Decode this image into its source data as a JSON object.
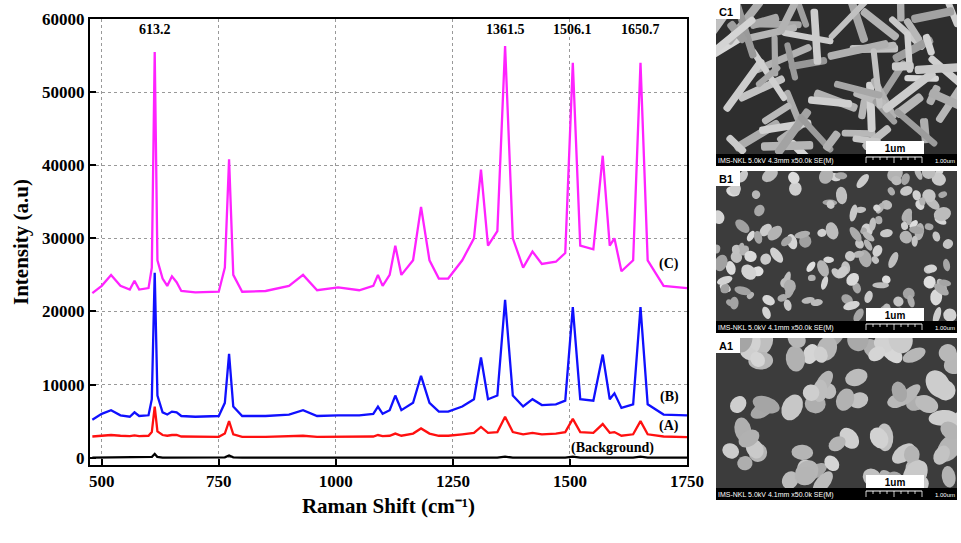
{
  "chart_data": {
    "type": "line",
    "x_label": "Raman Shift (cm⁻¹)",
    "y_label": "Intensity (a.u)",
    "xlim": [
      475,
      1750
    ],
    "xticks": [
      500,
      750,
      1000,
      1250,
      1500,
      1750
    ],
    "ylim": [
      -1000,
      60000
    ],
    "yticks": [
      0,
      10000,
      20000,
      30000,
      40000,
      50000,
      60000
    ],
    "grid": true,
    "x": [
      480,
      500,
      520,
      540,
      560,
      570,
      580,
      600,
      607,
      613.2,
      619,
      630,
      640,
      650,
      660,
      670,
      700,
      750,
      763,
      772,
      781,
      800,
      850,
      900,
      930,
      960,
      1005,
      1050,
      1080,
      1090,
      1100,
      1115,
      1127,
      1140,
      1165,
      1182,
      1200,
      1220,
      1240,
      1270,
      1295,
      1310,
      1325,
      1345,
      1361.5,
      1378,
      1400,
      1420,
      1440,
      1470,
      1490,
      1506.1,
      1522,
      1550,
      1570,
      1585,
      1595,
      1610,
      1635,
      1650.7,
      1666,
      1700,
      1750
    ],
    "series": [
      {
        "name": "(C)",
        "color": "#ff22ff",
        "values": [
          22500,
          23500,
          25000,
          23500,
          23000,
          24200,
          23000,
          23200,
          26000,
          55500,
          27000,
          24500,
          23500,
          24800,
          24000,
          22800,
          22600,
          22700,
          26000,
          40800,
          25000,
          22700,
          22800,
          23500,
          25000,
          22900,
          23300,
          22900,
          23500,
          25000,
          23500,
          25000,
          29000,
          25000,
          27000,
          34300,
          27000,
          24500,
          24500,
          27000,
          30000,
          39400,
          29000,
          31000,
          56300,
          30000,
          26000,
          28200,
          26500,
          26800,
          28000,
          54000,
          29000,
          28500,
          41300,
          29000,
          30000,
          25500,
          27000,
          54000,
          27000,
          23500,
          23200
        ]
      },
      {
        "name": "(B)",
        "color": "#1010ff",
        "values": [
          5200,
          6000,
          6500,
          5800,
          5600,
          6200,
          5700,
          5800,
          8000,
          25300,
          8500,
          6200,
          5900,
          6300,
          6200,
          5700,
          5600,
          5700,
          7500,
          14200,
          7000,
          5700,
          5700,
          5900,
          6500,
          5700,
          5800,
          5800,
          6000,
          7000,
          6000,
          6500,
          8500,
          6500,
          7500,
          11200,
          7500,
          6300,
          6300,
          7000,
          8000,
          13700,
          8000,
          8500,
          21600,
          8500,
          7000,
          8000,
          7200,
          7300,
          7800,
          20600,
          8000,
          7800,
          14100,
          8000,
          8800,
          6800,
          7300,
          20600,
          7300,
          5900,
          5800
        ]
      },
      {
        "name": "(A)",
        "color": "#ff1010",
        "values": [
          2900,
          3000,
          3100,
          3000,
          2950,
          3050,
          2950,
          3000,
          3500,
          7000,
          3600,
          3100,
          3000,
          3100,
          3100,
          2900,
          2850,
          2850,
          3300,
          5000,
          3200,
          2850,
          2850,
          2900,
          3000,
          2850,
          2850,
          2850,
          2900,
          3100,
          2950,
          3000,
          3300,
          3000,
          3300,
          4000,
          3300,
          3000,
          3000,
          3200,
          3400,
          4200,
          3400,
          3500,
          5600,
          3500,
          3200,
          3400,
          3200,
          3300,
          3500,
          5300,
          3500,
          3400,
          4600,
          3400,
          3500,
          3000,
          3200,
          5000,
          3200,
          2900,
          2800
        ]
      },
      {
        "name": "(Background)",
        "color": "#000000",
        "values": [
          0,
          0,
          0,
          0,
          0,
          0,
          0,
          0,
          100,
          500,
          100,
          0,
          0,
          0,
          0,
          0,
          0,
          0,
          50,
          300,
          50,
          0,
          0,
          0,
          0,
          0,
          0,
          0,
          0,
          0,
          0,
          0,
          0,
          0,
          0,
          0,
          0,
          0,
          0,
          0,
          0,
          0,
          0,
          0,
          150,
          0,
          0,
          0,
          0,
          0,
          0,
          150,
          0,
          0,
          0,
          0,
          0,
          0,
          0,
          150,
          0,
          0,
          0
        ]
      }
    ],
    "annotations": [
      {
        "text": "613.2",
        "x": 613.2,
        "y": 58500
      },
      {
        "text": "1361.5",
        "x": 1361.5,
        "y": 58500
      },
      {
        "text": "1506.1",
        "x": 1506.1,
        "y": 58500
      },
      {
        "text": "1650.7",
        "x": 1650.7,
        "y": 58500
      },
      {
        "text": "(C)",
        "x": 1712,
        "y": 26500
      },
      {
        "text": "(B)",
        "x": 1712,
        "y": 8300
      },
      {
        "text": "(A)",
        "x": 1712,
        "y": 4300
      },
      {
        "text": "(Background)",
        "x": 1590,
        "y": 1300
      }
    ]
  },
  "sem_panels": [
    {
      "label": "C1",
      "scale_label": "1um",
      "footer": "IMS-NKL 5.0kV 4.3mm x50.0k SE(M)",
      "scale_end": "1.00um"
    },
    {
      "label": "B1",
      "scale_label": "1um",
      "footer": "IMS-NKL 5.0kV 4.1mm x50.0k SE(M)",
      "scale_end": "1.00um"
    },
    {
      "label": "A1",
      "scale_label": "1um",
      "footer": "IMS-NKL 5.0kV 4.1mm x50.0k SE(M)",
      "scale_end": "1.00um"
    }
  ]
}
